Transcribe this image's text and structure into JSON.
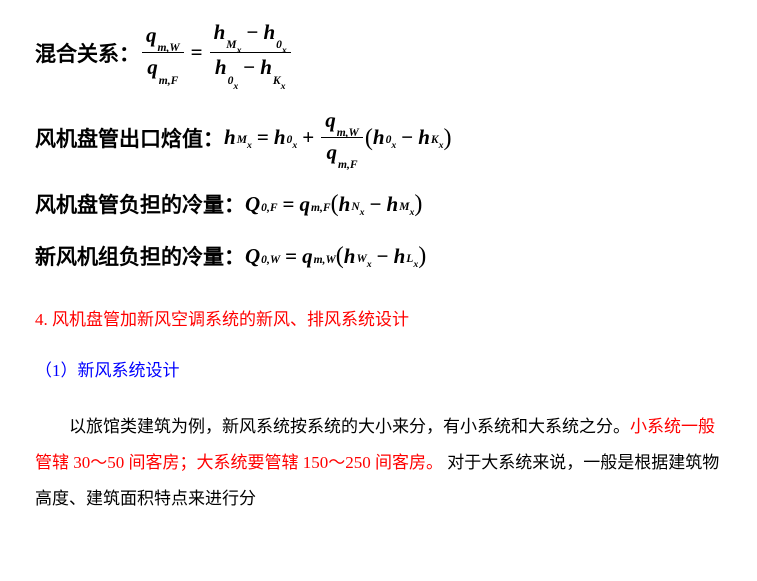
{
  "formulas": {
    "mix": {
      "label": "混合关系："
    },
    "outlet": {
      "label": "风机盘管出口焓值："
    },
    "fancoil_cooling": {
      "label": "风机盘管负担的冷量："
    },
    "fresh_cooling": {
      "label": "新风机组负担的冷量："
    }
  },
  "section4": {
    "title": "4. 风机盘管加新风空调系统的新风、排风系统设计",
    "sub1": "（1）新风系统设计",
    "para_lead": "以旅馆类建筑为例，新风系统按系统的大小来分，有小系统和大系统之分。",
    "para_red": "小系统一般管辖 30～50 间客房；大系统要管辖 150～250 间客房。",
    "para_tail1": " 对于大系统来说，一般是根据建筑物高度、建筑面积特点来进行分"
  },
  "colors": {
    "red": "#ff0000",
    "blue": "#0000ff",
    "black": "#000000"
  }
}
